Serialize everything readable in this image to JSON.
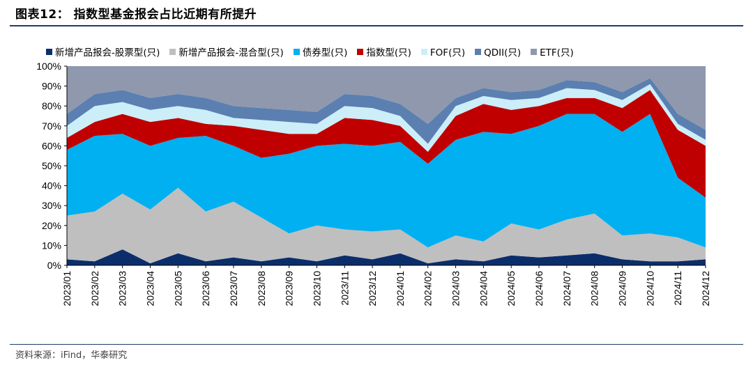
{
  "figure_title": "图表12： 指数型基金报会占比近期有所提升",
  "source": "资料来源：iFind，华泰研究",
  "chart_data": {
    "type": "area",
    "stacked": true,
    "percent": true,
    "x": [
      "2023/01",
      "2023/02",
      "2023/03",
      "2023/04",
      "2023/05",
      "2023/06",
      "2023/07",
      "2023/08",
      "2023/09",
      "2023/10",
      "2023/11",
      "2023/12",
      "2024/01",
      "2024/02",
      "2024/03",
      "2024/04",
      "2024/05",
      "2024/06",
      "2024/07",
      "2024/08",
      "2024/09",
      "2024/10",
      "2024/11",
      "2024/12"
    ],
    "y_ticks": [
      "0%",
      "10%",
      "20%",
      "30%",
      "40%",
      "50%",
      "60%",
      "70%",
      "80%",
      "90%",
      "100%"
    ],
    "ylim": [
      0,
      100
    ],
    "legend_position": "top",
    "series": [
      {
        "name": "新增产品报会-股票型(只)",
        "color": "#0b2e6b",
        "values": [
          3,
          2,
          8,
          1,
          6,
          2,
          4,
          2,
          4,
          2,
          5,
          3,
          6,
          1,
          3,
          2,
          5,
          4,
          5,
          6,
          3,
          2,
          2,
          3
        ]
      },
      {
        "name": "新增产品报会-混合型(只)",
        "color": "#bfbfbf",
        "values": [
          22,
          25,
          28,
          27,
          33,
          25,
          28,
          22,
          12,
          18,
          13,
          14,
          12,
          8,
          12,
          10,
          16,
          14,
          18,
          20,
          12,
          14,
          12,
          6
        ]
      },
      {
        "name": "债券型(只)",
        "color": "#00b0f0",
        "values": [
          33,
          38,
          30,
          32,
          25,
          38,
          28,
          30,
          40,
          40,
          43,
          43,
          44,
          42,
          48,
          55,
          45,
          52,
          53,
          50,
          52,
          60,
          30,
          25
        ]
      },
      {
        "name": "指数型(只)",
        "color": "#c00000",
        "values": [
          6,
          7,
          10,
          12,
          10,
          6,
          10,
          14,
          10,
          6,
          13,
          13,
          8,
          6,
          12,
          14,
          12,
          10,
          8,
          8,
          12,
          12,
          24,
          26
        ]
      },
      {
        "name": "FOF(只)",
        "color": "#cbeef9",
        "values": [
          6,
          8,
          6,
          6,
          6,
          7,
          4,
          5,
          6,
          5,
          6,
          6,
          5,
          4,
          5,
          4,
          5,
          4,
          5,
          4,
          4,
          3,
          3,
          3
        ]
      },
      {
        "name": "QDII(只)",
        "color": "#5b7fb0",
        "values": [
          6,
          6,
          6,
          6,
          6,
          6,
          6,
          6,
          6,
          6,
          6,
          6,
          6,
          10,
          4,
          4,
          4,
          4,
          4,
          4,
          4,
          3,
          5,
          5
        ]
      },
      {
        "name": "ETF(只)",
        "color": "#8f98ad",
        "values": [
          24,
          14,
          12,
          16,
          14,
          16,
          20,
          21,
          22,
          23,
          14,
          15,
          19,
          29,
          16,
          11,
          13,
          12,
          7,
          8,
          13,
          6,
          24,
          32
        ]
      }
    ]
  }
}
